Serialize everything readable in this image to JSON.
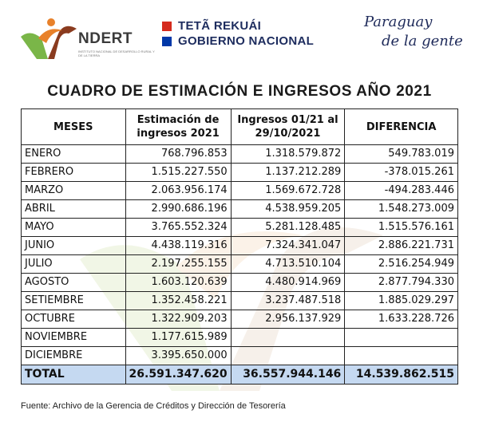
{
  "header": {
    "indert_logo_text": "NDERT",
    "indert_subtitle": "INSTITUTO NACIONAL DE DESARROLLO RURAL Y DE LA TIERRA",
    "gov_line1": "TETÃ REKUÁI",
    "gov_line2": "GOBIERNO NACIONAL",
    "slogan_line1": "Paraguay",
    "slogan_line2": "de la gente"
  },
  "title": "CUADRO DE ESTIMACIÓN E INGRESOS AÑO 2021",
  "table": {
    "headers": {
      "meses": "MESES",
      "estimacion_l1": "Estimación de",
      "estimacion_l2": "ingresos 2021",
      "ingresos_l1": "Ingresos 01/21 al",
      "ingresos_l2": "29/10/2021",
      "diferencia": "DIFERENCIA"
    },
    "rows": [
      {
        "mes": "ENERO",
        "estimacion": "768.796.853",
        "ingresos": "1.318.579.872",
        "diferencia": "549.783.019"
      },
      {
        "mes": "FEBRERO",
        "estimacion": "1.515.227.550",
        "ingresos": "1.137.212.289",
        "diferencia": "-378.015.261"
      },
      {
        "mes": "MARZO",
        "estimacion": "2.063.956.174",
        "ingresos": "1.569.672.728",
        "diferencia": "-494.283.446"
      },
      {
        "mes": "ABRIL",
        "estimacion": "2.990.686.196",
        "ingresos": "4.538.959.205",
        "diferencia": "1.548.273.009"
      },
      {
        "mes": "MAYO",
        "estimacion": "3.765.552.324",
        "ingresos": "5.281.128.485",
        "diferencia": "1.515.576.161"
      },
      {
        "mes": "JUNIO",
        "estimacion": "4.438.119.316",
        "ingresos": "7.324.341.047",
        "diferencia": "2.886.221.731"
      },
      {
        "mes": "JULIO",
        "estimacion": "2.197.255.155",
        "ingresos": "4.713.510.104",
        "diferencia": "2.516.254.949"
      },
      {
        "mes": "AGOSTO",
        "estimacion": "1.603.120.639",
        "ingresos": "4.480.914.969",
        "diferencia": "2.877.794.330"
      },
      {
        "mes": "SETIEMBRE",
        "estimacion": "1.352.458.221",
        "ingresos": "3.237.487.518",
        "diferencia": "1.885.029.297"
      },
      {
        "mes": "OCTUBRE",
        "estimacion": "1.322.909.203",
        "ingresos": "2.956.137.929",
        "diferencia": "1.633.228.726"
      },
      {
        "mes": "NOVIEMBRE",
        "estimacion": "1.177.615.989",
        "ingresos": "",
        "diferencia": ""
      },
      {
        "mes": "DICIEMBRE",
        "estimacion": "3.395.650.000",
        "ingresos": "",
        "diferencia": ""
      }
    ],
    "total": {
      "mes": "TOTAL",
      "estimacion": "26.591.347.620",
      "ingresos": "36.557.944.146",
      "diferencia": "14.539.862.515"
    }
  },
  "footer": "Fuente: Archivo de la Gerencia de Créditos y Dirección de Tesorería",
  "colors": {
    "total_row_bg": "#c5d9f1",
    "indert_green": "#7ab648",
    "indert_orange": "#e8812a",
    "flag_red": "#d52b1e",
    "flag_blue": "#0038a8",
    "navy": "#1d2c5e"
  }
}
